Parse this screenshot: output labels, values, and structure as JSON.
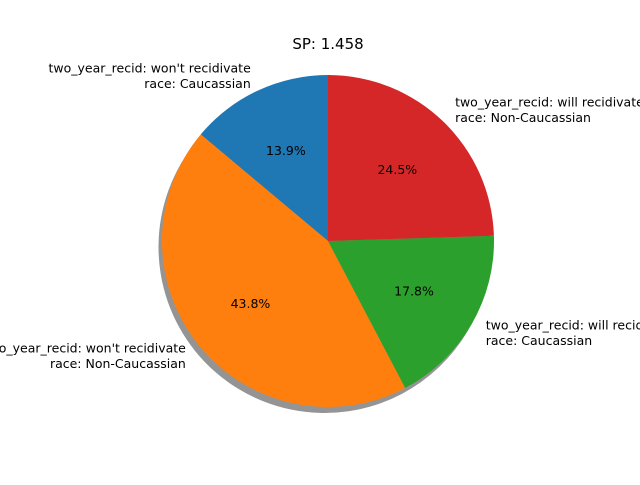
{
  "chart_data": {
    "type": "pie",
    "title": "SP: 1.458",
    "shadow": true,
    "slices": [
      {
        "label_lines": [
          "two_year_recid: won't recidivate",
          "race: Caucassian"
        ],
        "value": 13.9,
        "pct_label": "13.9%",
        "color": "#1f77b4"
      },
      {
        "label_lines": [
          "two_year_recid: won't recidivate",
          "race: Non-Caucassian"
        ],
        "value": 43.8,
        "pct_label": "43.8%",
        "color": "#ff7f0e"
      },
      {
        "label_lines": [
          "two_year_recid: will recidivate",
          "race: Caucassian"
        ],
        "value": 17.8,
        "pct_label": "17.8%",
        "color": "#2ca02c"
      },
      {
        "label_lines": [
          "two_year_recid: will recidivate",
          "race: Non-Caucassian"
        ],
        "value": 24.5,
        "pct_label": "24.5%",
        "color": "#d62728"
      }
    ]
  }
}
